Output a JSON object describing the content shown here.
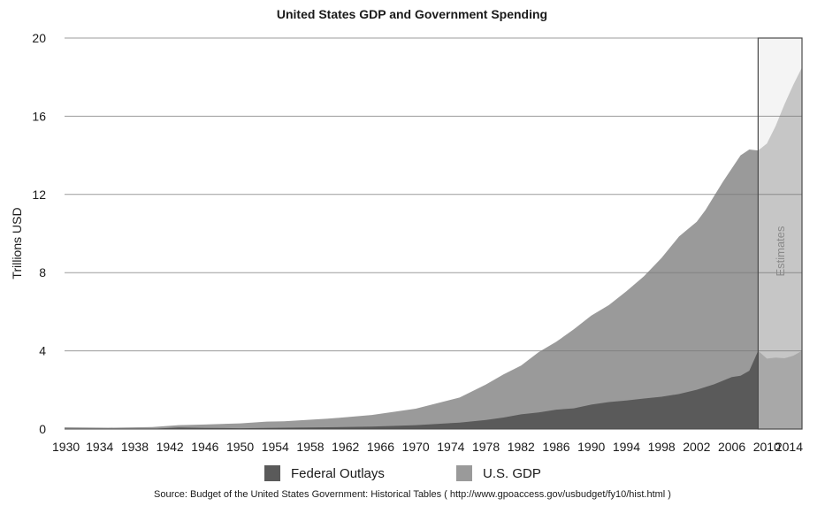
{
  "chart_data": {
    "type": "area",
    "title": "United States GDP and Government Spending",
    "ylabel": "Trillions USD",
    "xlabel": "",
    "ylim": [
      0,
      20
    ],
    "yticks": [
      0,
      4,
      8,
      12,
      16,
      20
    ],
    "xlim": [
      1930,
      2014
    ],
    "xticks": [
      1930,
      1934,
      1938,
      1942,
      1946,
      1950,
      1954,
      1958,
      1962,
      1966,
      1970,
      1974,
      1978,
      1982,
      1986,
      1990,
      1994,
      1998,
      2002,
      2006,
      2010,
      2014
    ],
    "grid": true,
    "legend_position": "bottom",
    "estimates_from": 2009,
    "estimates_label": "Estimates",
    "series": [
      {
        "name": "U.S. GDP",
        "color": "#9a9a9a",
        "estimate_color": "#c6c6c6",
        "x": [
          1930,
          1935,
          1940,
          1943,
          1946,
          1950,
          1953,
          1955,
          1960,
          1965,
          1970,
          1975,
          1978,
          1980,
          1982,
          1984,
          1986,
          1988,
          1990,
          1992,
          1994,
          1996,
          1998,
          2000,
          2002,
          2003,
          2005,
          2007,
          2008,
          2009,
          2010,
          2011,
          2012,
          2013,
          2014
        ],
        "values": [
          0.09,
          0.07,
          0.1,
          0.2,
          0.23,
          0.29,
          0.38,
          0.4,
          0.53,
          0.72,
          1.04,
          1.61,
          2.28,
          2.79,
          3.25,
          3.93,
          4.46,
          5.1,
          5.8,
          6.34,
          7.05,
          7.82,
          8.75,
          9.85,
          10.6,
          11.2,
          12.65,
          14.0,
          14.3,
          14.25,
          14.6,
          15.5,
          16.6,
          17.6,
          18.5
        ]
      },
      {
        "name": "Federal Outlays",
        "color": "#5a5a5a",
        "estimate_color": "#a8a8a8",
        "x": [
          1930,
          1940,
          1943,
          1946,
          1950,
          1955,
          1960,
          1965,
          1970,
          1975,
          1978,
          1980,
          1982,
          1984,
          1986,
          1988,
          1990,
          1992,
          1994,
          1996,
          1998,
          2000,
          2002,
          2004,
          2006,
          2007,
          2008,
          2009,
          2010,
          2011,
          2012,
          2013,
          2014
        ],
        "values": [
          0.003,
          0.01,
          0.08,
          0.06,
          0.04,
          0.07,
          0.09,
          0.12,
          0.2,
          0.33,
          0.46,
          0.59,
          0.75,
          0.85,
          0.99,
          1.06,
          1.25,
          1.38,
          1.46,
          1.56,
          1.65,
          1.79,
          2.01,
          2.29,
          2.66,
          2.73,
          2.98,
          4.0,
          3.6,
          3.65,
          3.62,
          3.75,
          4.0
        ]
      }
    ]
  },
  "legend": {
    "outlays_label": "Federal Outlays",
    "gdp_label": "U.S. GDP"
  },
  "source_text": "Source: Budget of the United States Government: Historical Tables ( http://www.gpoaccess.gov/usbudget/fy10/hist.html )"
}
